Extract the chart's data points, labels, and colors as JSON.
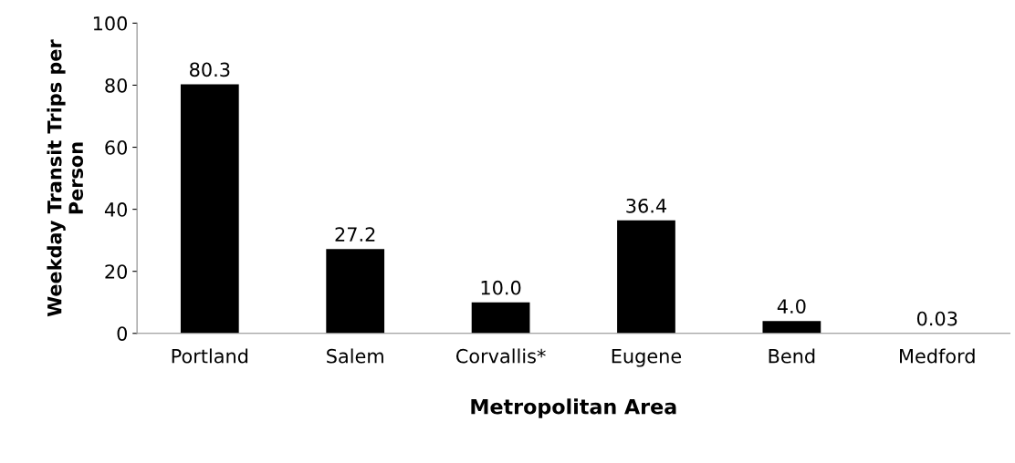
{
  "chart_data": {
    "type": "bar",
    "xlabel": "Metropolitan Area",
    "ylabel": "Weekday Transit Trips per Person",
    "categories": [
      "Portland",
      "Salem",
      "Corvallis*",
      "Eugene",
      "Bend",
      "Medford"
    ],
    "values": [
      80.3,
      27.2,
      10.0,
      36.4,
      4.0,
      0.03
    ],
    "value_labels": [
      "80.3",
      "27.2",
      "10.0",
      "36.4",
      "4.0",
      "0.03"
    ],
    "color": "#000000",
    "ylim": [
      0,
      100
    ],
    "yticks": [
      0,
      20,
      40,
      60,
      80,
      100
    ],
    "grid": false,
    "legend": false
  }
}
